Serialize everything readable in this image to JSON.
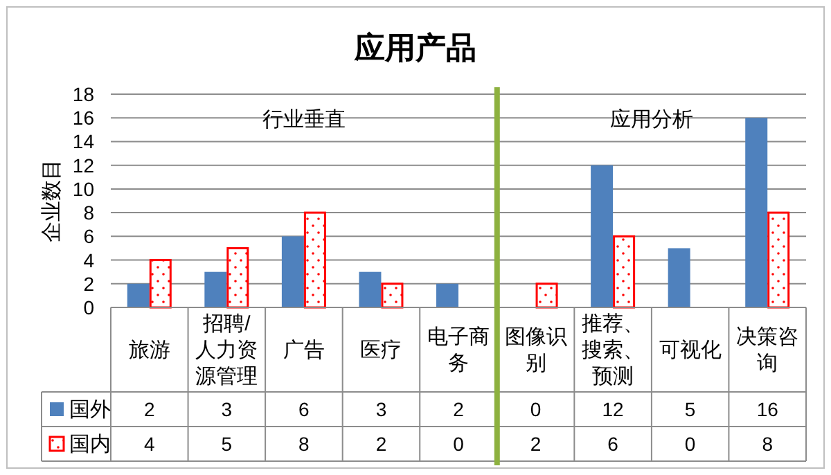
{
  "chart_data": {
    "type": "bar",
    "title": "应用产品",
    "ylabel": "企业数目",
    "categories": [
      "旅游",
      "招聘/人力资源管理",
      "广告",
      "医疗",
      "电子商务",
      "图像识别",
      "推荐、搜索、预测",
      "可视化",
      "决策咨询"
    ],
    "series": [
      {
        "name": "国外",
        "color": "#4f81bd",
        "values": [
          2,
          3,
          6,
          3,
          2,
          0,
          12,
          5,
          16
        ]
      },
      {
        "name": "国内",
        "color": "#ff0000",
        "values": [
          4,
          5,
          8,
          2,
          0,
          2,
          6,
          0,
          8
        ]
      }
    ],
    "ylim": [
      0,
      18
    ],
    "yticks": [
      0,
      2,
      4,
      6,
      8,
      10,
      12,
      14,
      16,
      18
    ],
    "grid": "y",
    "legend": "bottom",
    "data_labels": true,
    "ref_lines": [
      {
        "axis": "x",
        "value": "图像识别",
        "color": "#8db13f"
      }
    ],
    "annotations": [
      "行业垂直",
      "应用分析"
    ]
  }
}
